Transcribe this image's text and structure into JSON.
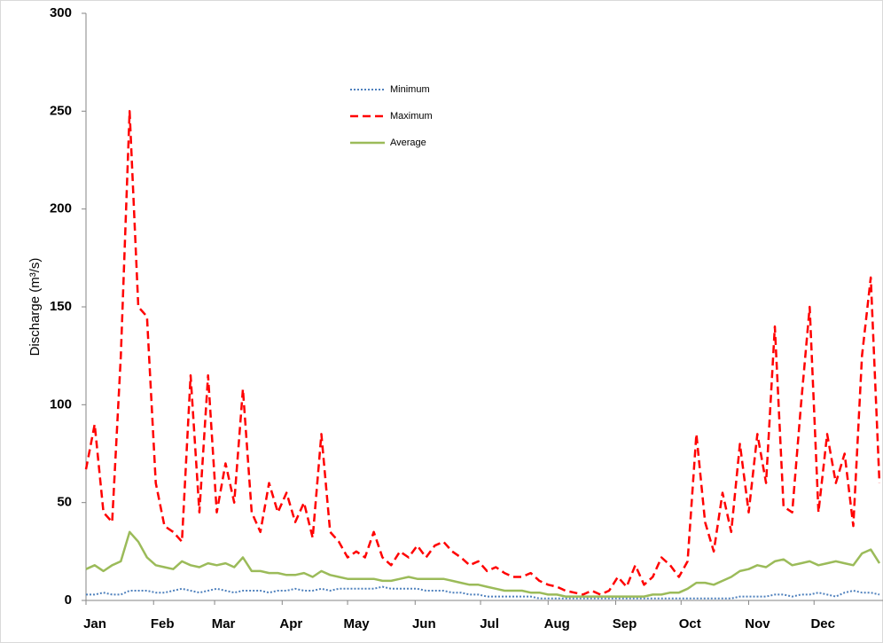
{
  "chart_data": {
    "type": "line",
    "y_label": "Discharge (m³/s)",
    "x": [
      1,
      5,
      9,
      13,
      17,
      21,
      25,
      29,
      33,
      37,
      41,
      45,
      49,
      53,
      57,
      61,
      65,
      69,
      73,
      77,
      81,
      85,
      89,
      93,
      97,
      101,
      105,
      109,
      113,
      117,
      121,
      125,
      129,
      133,
      137,
      141,
      145,
      149,
      153,
      157,
      161,
      165,
      169,
      173,
      177,
      181,
      185,
      189,
      193,
      197,
      201,
      205,
      209,
      213,
      217,
      221,
      225,
      229,
      233,
      237,
      241,
      245,
      249,
      253,
      257,
      261,
      265,
      269,
      273,
      277,
      281,
      285,
      289,
      293,
      297,
      301,
      305,
      309,
      313,
      317,
      321,
      325,
      329,
      333,
      337,
      341,
      345,
      349,
      353,
      357,
      361,
      365
    ],
    "xlim": [
      1,
      365
    ],
    "xticks": [
      {
        "value": 1,
        "label": "Jan"
      },
      {
        "value": 32,
        "label": "Feb"
      },
      {
        "value": 60,
        "label": "Mar"
      },
      {
        "value": 91,
        "label": "Apr"
      },
      {
        "value": 121,
        "label": "May"
      },
      {
        "value": 152,
        "label": "Jun"
      },
      {
        "value": 182,
        "label": "Jul"
      },
      {
        "value": 213,
        "label": "Aug"
      },
      {
        "value": 244,
        "label": "Sep"
      },
      {
        "value": 274,
        "label": "Oct"
      },
      {
        "value": 305,
        "label": "Nov"
      },
      {
        "value": 335,
        "label": "Dec"
      }
    ],
    "ylim": [
      0,
      300
    ],
    "yticks": [
      0,
      50,
      100,
      150,
      200,
      250,
      300
    ],
    "grid": false,
    "series": [
      {
        "name": "Minimum",
        "color": "#4f81bd",
        "style": "dotted",
        "values": [
          3,
          3,
          4,
          3,
          3,
          5,
          5,
          5,
          4,
          4,
          5,
          6,
          5,
          4,
          5,
          6,
          5,
          4,
          5,
          5,
          5,
          4,
          5,
          5,
          6,
          5,
          5,
          6,
          5,
          6,
          6,
          6,
          6,
          6,
          7,
          6,
          6,
          6,
          6,
          5,
          5,
          5,
          4,
          4,
          3,
          3,
          2,
          2,
          2,
          2,
          2,
          2,
          1,
          1,
          1,
          1,
          1,
          1,
          1,
          1,
          1,
          1,
          1,
          1,
          1,
          1,
          1,
          1,
          1,
          1,
          1,
          1,
          1,
          1,
          1,
          2,
          2,
          2,
          2,
          3,
          3,
          2,
          3,
          3,
          4,
          3,
          2,
          4,
          5,
          4,
          4,
          3
        ]
      },
      {
        "name": "Maximum",
        "color": "#ff0000",
        "style": "dashed",
        "values": [
          67,
          90,
          45,
          40,
          125,
          250,
          150,
          145,
          60,
          38,
          35,
          30,
          115,
          45,
          115,
          45,
          70,
          50,
          108,
          45,
          35,
          60,
          45,
          55,
          40,
          50,
          32,
          85,
          35,
          30,
          22,
          25,
          22,
          35,
          22,
          18,
          25,
          22,
          28,
          22,
          28,
          30,
          25,
          22,
          18,
          20,
          15,
          17,
          14,
          12,
          12,
          14,
          10,
          8,
          7,
          5,
          4,
          3,
          5,
          3,
          5,
          12,
          7,
          18,
          8,
          12,
          22,
          18,
          12,
          20,
          85,
          40,
          25,
          55,
          35,
          80,
          45,
          85,
          60,
          140,
          48,
          45,
          100,
          150,
          45,
          85,
          60,
          75,
          38,
          125,
          165,
          60
        ]
      },
      {
        "name": "Average",
        "color": "#9bbb59",
        "style": "solid",
        "values": [
          16,
          18,
          15,
          18,
          20,
          35,
          30,
          22,
          18,
          17,
          16,
          20,
          18,
          17,
          19,
          18,
          19,
          17,
          22,
          15,
          15,
          14,
          14,
          13,
          13,
          14,
          12,
          15,
          13,
          12,
          11,
          11,
          11,
          11,
          10,
          10,
          11,
          12,
          11,
          11,
          11,
          11,
          10,
          9,
          8,
          8,
          7,
          6,
          5,
          5,
          5,
          4,
          4,
          3,
          3,
          2,
          2,
          2,
          2,
          2,
          2,
          2,
          2,
          2,
          2,
          3,
          3,
          4,
          4,
          6,
          9,
          9,
          8,
          10,
          12,
          15,
          16,
          18,
          17,
          20,
          21,
          18,
          19,
          20,
          18,
          19,
          20,
          19,
          18,
          24,
          26,
          19
        ]
      }
    ]
  }
}
